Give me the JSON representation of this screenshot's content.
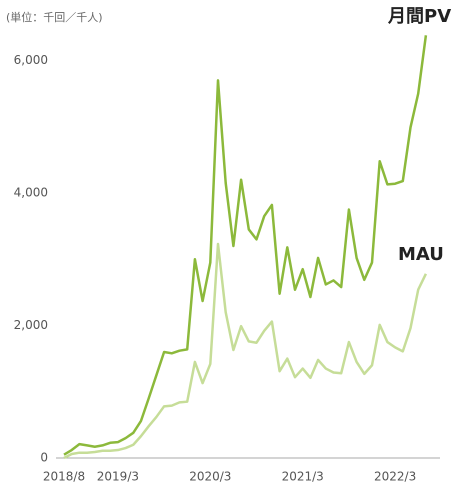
{
  "chart_data": {
    "type": "line",
    "unit_label": "(単位：千回／千人)",
    "categories": [
      "2018/8",
      null,
      null,
      null,
      null,
      null,
      null,
      "2019/3",
      null,
      null,
      null,
      null,
      null,
      null,
      null,
      null,
      null,
      null,
      null,
      "2020/3",
      null,
      null,
      null,
      null,
      null,
      null,
      null,
      null,
      null,
      null,
      null,
      "2021/3",
      null,
      null,
      null,
      null,
      null,
      null,
      null,
      null,
      null,
      null,
      null,
      "2022/3",
      null,
      null,
      null,
      null
    ],
    "series": [
      {
        "name": "月間PV",
        "color": "#8cb93b",
        "values": [
          50,
          120,
          210,
          190,
          170,
          190,
          230,
          240,
          300,
          380,
          560,
          900,
          1250,
          1600,
          1580,
          1620,
          1640,
          3000,
          2370,
          2950,
          5700,
          4150,
          3200,
          4200,
          3450,
          3300,
          3650,
          3820,
          2480,
          3180,
          2540,
          2850,
          2430,
          3020,
          2620,
          2680,
          2580,
          3750,
          3020,
          2690,
          2950,
          4480,
          4130,
          4140,
          4180,
          4990,
          5500,
          6380
        ]
      },
      {
        "name": "MAU",
        "color": "#c6dd98",
        "values": [
          0,
          60,
          80,
          80,
          90,
          110,
          110,
          120,
          150,
          200,
          330,
          480,
          620,
          780,
          790,
          840,
          850,
          1450,
          1130,
          1420,
          3230,
          2200,
          1630,
          1990,
          1760,
          1740,
          1920,
          2060,
          1310,
          1500,
          1220,
          1350,
          1210,
          1480,
          1350,
          1290,
          1280,
          1750,
          1450,
          1270,
          1400,
          2010,
          1750,
          1670,
          1610,
          1960,
          2540,
          2780
        ]
      }
    ],
    "ylim": [
      0,
      7000
    ],
    "yticks": [
      0,
      {
        "value": 2000,
        "label": "2,000"
      },
      {
        "value": 4000,
        "label": "4,000"
      },
      {
        "value": 6000,
        "label": "6,000"
      }
    ]
  }
}
